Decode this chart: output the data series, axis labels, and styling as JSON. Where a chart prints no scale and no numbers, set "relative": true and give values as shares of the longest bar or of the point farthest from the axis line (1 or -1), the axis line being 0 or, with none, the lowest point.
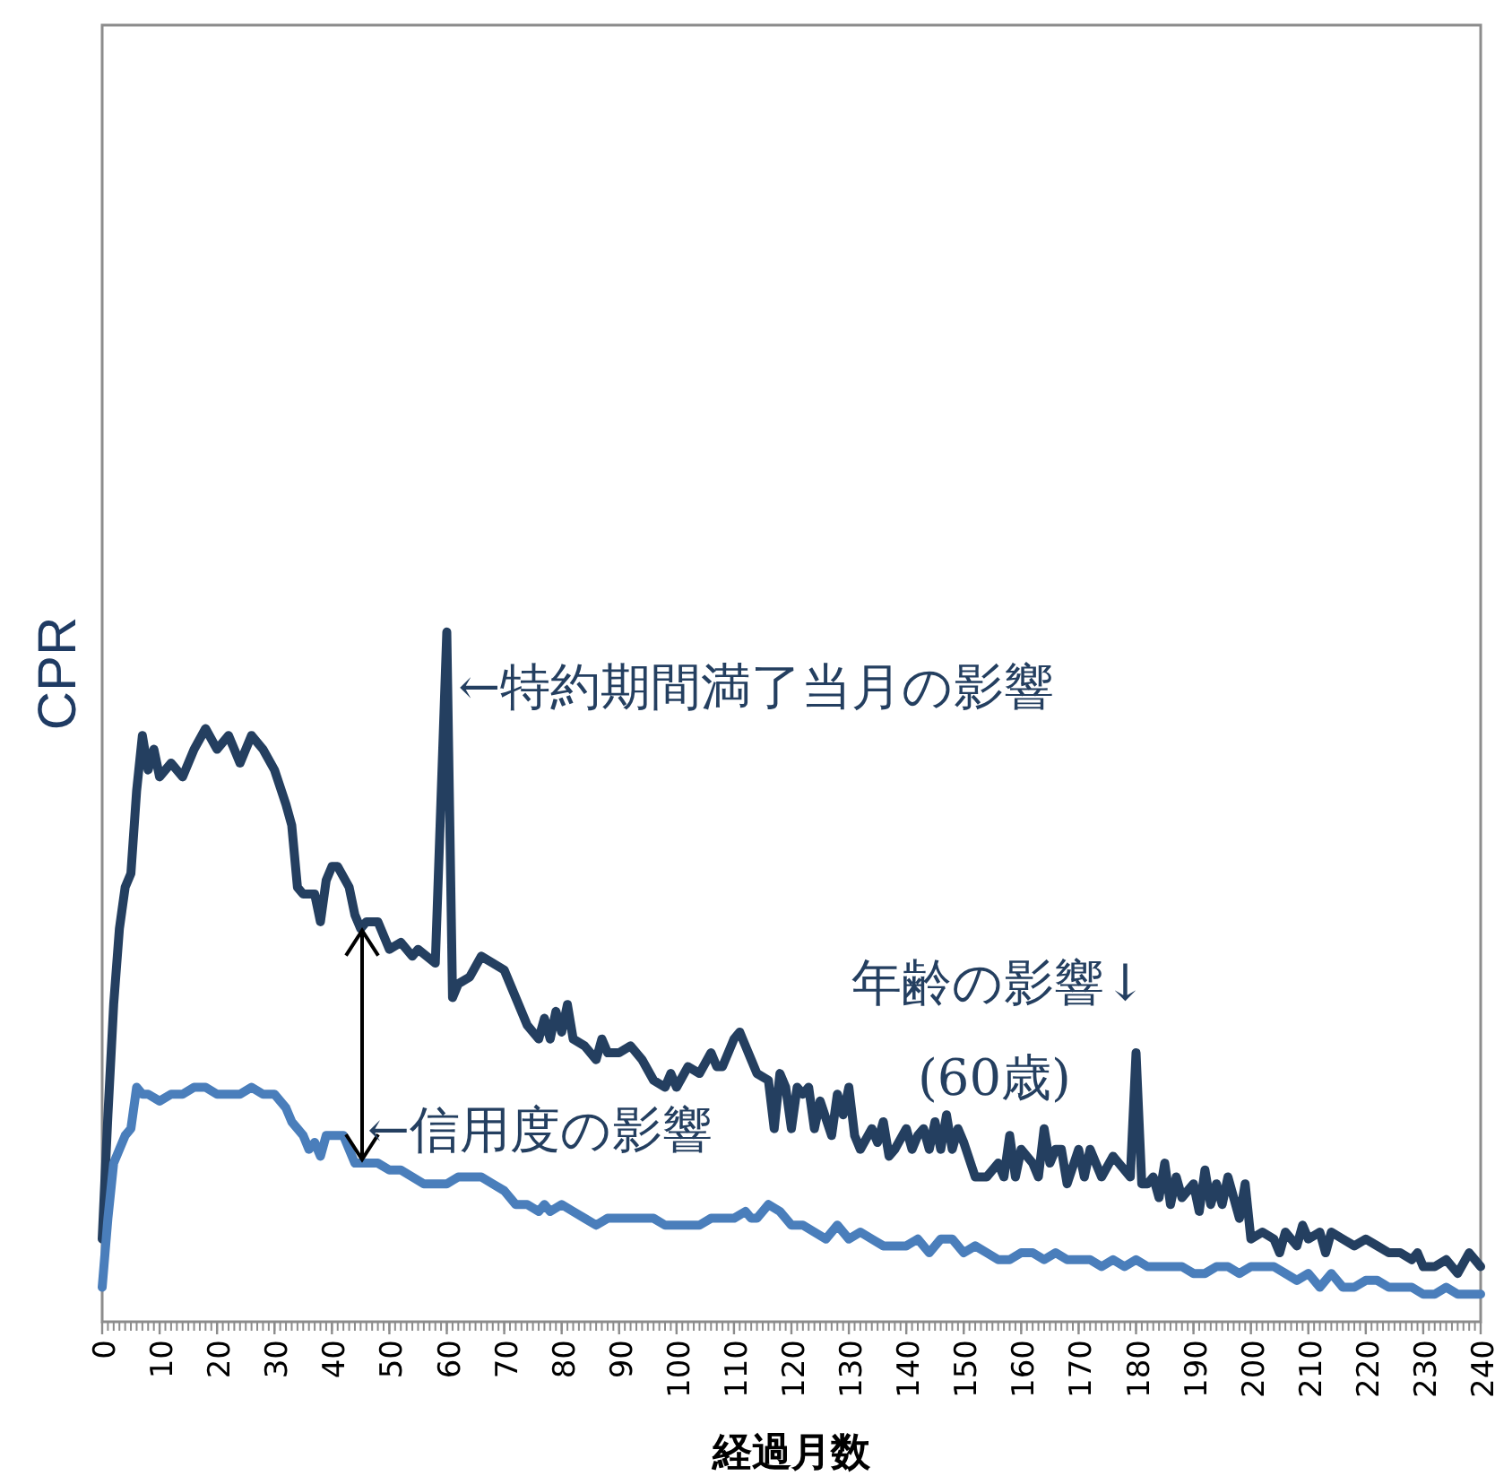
{
  "chart_data": {
    "type": "line",
    "relative": true,
    "ylabel": "CPR",
    "xlabel": "経過月数",
    "xlim": [
      0,
      240
    ],
    "xticks": [
      0,
      10,
      20,
      30,
      40,
      50,
      60,
      70,
      80,
      90,
      100,
      110,
      120,
      130,
      140,
      150,
      160,
      170,
      180,
      190,
      200,
      210,
      220,
      230,
      240
    ],
    "tick_labels": "x",
    "grid": false,
    "line_style": "solid",
    "marker": "none",
    "series": [
      {
        "color": "#243f60",
        "x": [
          0,
          1,
          2,
          3,
          4,
          5,
          6,
          7,
          8,
          9,
          10,
          12,
          14,
          16,
          18,
          20,
          22,
          24,
          25,
          26,
          28,
          30,
          32,
          33,
          34,
          35,
          37,
          38,
          39,
          40,
          41,
          43,
          44,
          45,
          46,
          48,
          50,
          52,
          54,
          55,
          58,
          60,
          61,
          62,
          64,
          66,
          68,
          70,
          72,
          74,
          76,
          77,
          78,
          79,
          80,
          81,
          82,
          84,
          86,
          87,
          88,
          90,
          92,
          94,
          96,
          98,
          99,
          100,
          102,
          104,
          106,
          107,
          108,
          110,
          111,
          112,
          113,
          114,
          116,
          117,
          118,
          119,
          120,
          121,
          122,
          123,
          124,
          125,
          127,
          128,
          129,
          130,
          131,
          132,
          134,
          135,
          136,
          137,
          138,
          140,
          141,
          142,
          143,
          144,
          145,
          146,
          147,
          148,
          149,
          150,
          152,
          154,
          156,
          157,
          158,
          159,
          160,
          162,
          163,
          164,
          165,
          166,
          167,
          168,
          170,
          171,
          172,
          174,
          176,
          177,
          179,
          180,
          181,
          182,
          183,
          184,
          185,
          186,
          187,
          188,
          190,
          191,
          192,
          193,
          194,
          195,
          196,
          198,
          199,
          200,
          202,
          204,
          205,
          206,
          208,
          209,
          210,
          212,
          213,
          214,
          216,
          218,
          220,
          222,
          224,
          226,
          228,
          229,
          230,
          232,
          234,
          236,
          238,
          240
        ],
        "values": [
          0.12,
          0.3,
          0.46,
          0.57,
          0.63,
          0.65,
          0.77,
          0.85,
          0.8,
          0.83,
          0.79,
          0.81,
          0.79,
          0.83,
          0.86,
          0.83,
          0.85,
          0.81,
          0.83,
          0.85,
          0.83,
          0.8,
          0.75,
          0.72,
          0.63,
          0.62,
          0.62,
          0.58,
          0.64,
          0.66,
          0.66,
          0.63,
          0.59,
          0.57,
          0.58,
          0.58,
          0.54,
          0.55,
          0.53,
          0.54,
          0.52,
          1.0,
          0.47,
          0.49,
          0.5,
          0.53,
          0.52,
          0.51,
          0.47,
          0.43,
          0.41,
          0.44,
          0.41,
          0.45,
          0.42,
          0.46,
          0.41,
          0.4,
          0.38,
          0.41,
          0.39,
          0.39,
          0.4,
          0.38,
          0.35,
          0.34,
          0.36,
          0.34,
          0.37,
          0.36,
          0.39,
          0.37,
          0.37,
          0.41,
          0.42,
          0.4,
          0.38,
          0.36,
          0.35,
          0.28,
          0.36,
          0.34,
          0.28,
          0.34,
          0.33,
          0.34,
          0.28,
          0.32,
          0.27,
          0.33,
          0.3,
          0.34,
          0.27,
          0.25,
          0.28,
          0.26,
          0.29,
          0.24,
          0.25,
          0.28,
          0.25,
          0.27,
          0.28,
          0.25,
          0.29,
          0.25,
          0.3,
          0.25,
          0.28,
          0.26,
          0.21,
          0.21,
          0.23,
          0.21,
          0.27,
          0.21,
          0.25,
          0.23,
          0.21,
          0.28,
          0.23,
          0.25,
          0.25,
          0.2,
          0.25,
          0.21,
          0.25,
          0.21,
          0.24,
          0.23,
          0.21,
          0.39,
          0.2,
          0.2,
          0.21,
          0.18,
          0.23,
          0.17,
          0.21,
          0.18,
          0.2,
          0.16,
          0.22,
          0.17,
          0.2,
          0.17,
          0.21,
          0.15,
          0.2,
          0.12,
          0.13,
          0.12,
          0.1,
          0.13,
          0.11,
          0.14,
          0.12,
          0.13,
          0.1,
          0.13,
          0.12,
          0.11,
          0.12,
          0.11,
          0.1,
          0.1,
          0.09,
          0.1,
          0.08,
          0.08,
          0.09,
          0.07,
          0.1,
          0.08
        ]
      },
      {
        "color": "#4a7ebb",
        "x": [
          0,
          1,
          2,
          4,
          5,
          6,
          7,
          8,
          10,
          12,
          14,
          16,
          18,
          20,
          22,
          24,
          26,
          28,
          30,
          32,
          33,
          35,
          36,
          37,
          38,
          39,
          40,
          42,
          43,
          44,
          46,
          48,
          50,
          52,
          54,
          56,
          58,
          60,
          62,
          64,
          66,
          68,
          70,
          72,
          74,
          76,
          77,
          78,
          80,
          82,
          84,
          86,
          88,
          90,
          92,
          94,
          96,
          98,
          100,
          102,
          104,
          106,
          108,
          110,
          112,
          113,
          114,
          116,
          118,
          120,
          122,
          124,
          126,
          128,
          130,
          132,
          134,
          136,
          138,
          140,
          142,
          144,
          146,
          148,
          150,
          152,
          154,
          156,
          158,
          160,
          162,
          164,
          166,
          168,
          170,
          172,
          174,
          176,
          178,
          180,
          182,
          184,
          186,
          188,
          190,
          192,
          194,
          196,
          198,
          200,
          202,
          204,
          206,
          208,
          210,
          212,
          214,
          216,
          218,
          220,
          222,
          224,
          226,
          228,
          230,
          232,
          234,
          236,
          238,
          240
        ],
        "values": [
          0.05,
          0.15,
          0.23,
          0.27,
          0.28,
          0.34,
          0.33,
          0.33,
          0.32,
          0.33,
          0.33,
          0.34,
          0.34,
          0.33,
          0.33,
          0.33,
          0.34,
          0.33,
          0.33,
          0.31,
          0.29,
          0.27,
          0.25,
          0.26,
          0.24,
          0.27,
          0.27,
          0.27,
          0.25,
          0.23,
          0.23,
          0.23,
          0.22,
          0.22,
          0.21,
          0.2,
          0.2,
          0.2,
          0.21,
          0.21,
          0.21,
          0.2,
          0.19,
          0.17,
          0.17,
          0.16,
          0.17,
          0.16,
          0.17,
          0.16,
          0.15,
          0.14,
          0.15,
          0.15,
          0.15,
          0.15,
          0.15,
          0.14,
          0.14,
          0.14,
          0.14,
          0.15,
          0.15,
          0.15,
          0.16,
          0.15,
          0.15,
          0.17,
          0.16,
          0.14,
          0.14,
          0.13,
          0.12,
          0.14,
          0.12,
          0.13,
          0.12,
          0.11,
          0.11,
          0.11,
          0.12,
          0.1,
          0.12,
          0.12,
          0.1,
          0.11,
          0.1,
          0.09,
          0.09,
          0.1,
          0.1,
          0.09,
          0.1,
          0.09,
          0.09,
          0.09,
          0.08,
          0.09,
          0.08,
          0.09,
          0.08,
          0.08,
          0.08,
          0.08,
          0.07,
          0.07,
          0.08,
          0.08,
          0.07,
          0.08,
          0.08,
          0.08,
          0.07,
          0.06,
          0.07,
          0.05,
          0.07,
          0.05,
          0.05,
          0.06,
          0.06,
          0.05,
          0.05,
          0.05,
          0.04,
          0.04,
          0.05,
          0.04,
          0.04,
          0.04
        ]
      }
    ],
    "annotations": [
      {
        "text": "←特約期間満了当月の影響",
        "x": 62,
        "y": 0.92
      },
      "←信用度の影響",
      "年齢の影響↓",
      "(60歳)"
    ]
  }
}
